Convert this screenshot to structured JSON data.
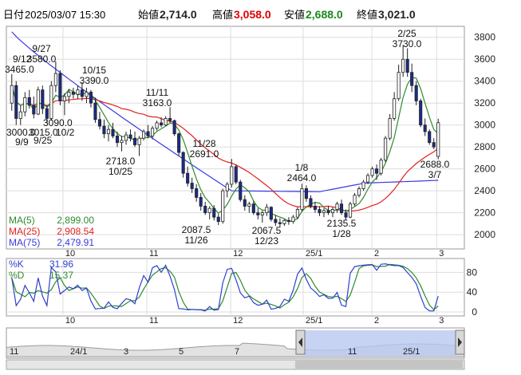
{
  "header": {
    "date_label": "日付",
    "datetime": "2025/03/07 15:30",
    "open_label": "始値",
    "open_value": "2,714.0",
    "high_label": "高値",
    "high_value": "3,058.0",
    "low_label": "安値",
    "low_value": "2,688.0",
    "close_label": "終値",
    "close_value": "3,021.0"
  },
  "colors": {
    "up": "#ffffff",
    "down": "#1a2b8c",
    "ma5": "#2e8b2e",
    "ma25": "#e02020",
    "ma75": "#3a3ae0",
    "k_line": "#2f3fd0",
    "d_line": "#2e8b2e",
    "open_color": "#222222",
    "high_color": "#e00000",
    "low_color": "#1a8a1a",
    "close_color": "#222222",
    "nav_fill": "#b8c8f0"
  },
  "legend": {
    "ma5_label": "MA(5)",
    "ma5_value": "2,899.00",
    "ma25_label": "MA(25)",
    "ma25_value": "2,908.54",
    "ma75_label": "MA(75)",
    "ma75_value": "2,479.91"
  },
  "stoch_legend": {
    "k_label": "%K",
    "k_value": "31.96",
    "d_label": "%D",
    "d_value": "15.37"
  },
  "chart_data": {
    "type": "candlestick",
    "price_axis": {
      "ticks": [
        2000,
        2200,
        2400,
        2600,
        2800,
        3000,
        3200,
        3400,
        3600,
        3800
      ],
      "range": [
        1870,
        3900
      ]
    },
    "x_ticks": [
      "10",
      "11",
      "12",
      "25/1",
      "2",
      "3"
    ],
    "annotations": [
      {
        "date": "9/12",
        "value": "3465.0"
      },
      {
        "date": "9/27",
        "value": "3580.0"
      },
      {
        "date": "10/15",
        "value": "3390.0"
      },
      {
        "date": "11/11",
        "value": "3163.0"
      },
      {
        "date": "11/28",
        "value": "2691.0"
      },
      {
        "date": "1/8",
        "value": "2464.0"
      },
      {
        "date": "2/25",
        "value": "3730.0"
      },
      {
        "date": "10/25",
        "value": "2718.0"
      },
      {
        "date": "11/26",
        "value": "2087.5"
      },
      {
        "date": "12/23",
        "value": "2067.5"
      },
      {
        "date": "1/28",
        "value": "2135.5"
      },
      {
        "date": "3/7",
        "value": "2688.0"
      }
    ],
    "low_labels_left": [
      "3000.0",
      "3015.0",
      "3090.0"
    ],
    "low_dates_left": [
      "9/9",
      "9/25",
      "10/2"
    ],
    "candles": [
      [
        3200,
        3465,
        3130,
        3360
      ],
      [
        3360,
        3400,
        3000,
        3060
      ],
      [
        3060,
        3180,
        3000,
        3120
      ],
      [
        3120,
        3300,
        3080,
        3250
      ],
      [
        3250,
        3320,
        3150,
        3180
      ],
      [
        3180,
        3260,
        3060,
        3100
      ],
      [
        3100,
        3350,
        3090,
        3320
      ],
      [
        3320,
        3360,
        3100,
        3150
      ],
      [
        3150,
        3180,
        3015,
        3060
      ],
      [
        3060,
        3400,
        3040,
        3360
      ],
      [
        3360,
        3580,
        3300,
        3470
      ],
      [
        3470,
        3500,
        3180,
        3220
      ],
      [
        3220,
        3290,
        3090,
        3260
      ],
      [
        3260,
        3330,
        3200,
        3300
      ],
      [
        3300,
        3340,
        3240,
        3280
      ],
      [
        3280,
        3360,
        3240,
        3320
      ],
      [
        3320,
        3390,
        3220,
        3260
      ],
      [
        3260,
        3340,
        3200,
        3300
      ],
      [
        3300,
        3320,
        3160,
        3200
      ],
      [
        3200,
        3250,
        3020,
        3050
      ],
      [
        3050,
        3120,
        2960,
        2990
      ],
      [
        2990,
        3050,
        2880,
        2920
      ],
      [
        2920,
        3000,
        2850,
        2960
      ],
      [
        2960,
        3020,
        2880,
        2900
      ],
      [
        2900,
        2940,
        2800,
        2840
      ],
      [
        2840,
        2900,
        2760,
        2860
      ],
      [
        2860,
        2940,
        2820,
        2910
      ],
      [
        2910,
        2960,
        2850,
        2880
      ],
      [
        2880,
        2940,
        2800,
        2820
      ],
      [
        2820,
        2900,
        2718,
        2880
      ],
      [
        2880,
        2960,
        2860,
        2940
      ],
      [
        2940,
        3000,
        2880,
        2900
      ],
      [
        2900,
        2990,
        2870,
        2970
      ],
      [
        2970,
        3040,
        2950,
        3020
      ],
      [
        3020,
        3070,
        2980,
        3000
      ],
      [
        3000,
        3080,
        2990,
        3060
      ],
      [
        3060,
        3163,
        3020,
        3040
      ],
      [
        3040,
        3050,
        2900,
        2920
      ],
      [
        2920,
        2930,
        2720,
        2750
      ],
      [
        2750,
        2760,
        2520,
        2560
      ],
      [
        2560,
        2620,
        2440,
        2470
      ],
      [
        2470,
        2520,
        2380,
        2420
      ],
      [
        2420,
        2460,
        2300,
        2340
      ],
      [
        2340,
        2380,
        2220,
        2260
      ],
      [
        2260,
        2300,
        2180,
        2200
      ],
      [
        2200,
        2260,
        2140,
        2240
      ],
      [
        2240,
        2270,
        2130,
        2160
      ],
      [
        2160,
        2190,
        2087.5,
        2120
      ],
      [
        2120,
        2420,
        2100,
        2400
      ],
      [
        2400,
        2480,
        2340,
        2460
      ],
      [
        2460,
        2691,
        2430,
        2620
      ],
      [
        2620,
        2640,
        2460,
        2480
      ],
      [
        2480,
        2500,
        2300,
        2320
      ],
      [
        2320,
        2360,
        2220,
        2260
      ],
      [
        2260,
        2300,
        2200,
        2280
      ],
      [
        2280,
        2310,
        2180,
        2200
      ],
      [
        2200,
        2240,
        2140,
        2180
      ],
      [
        2180,
        2220,
        2110,
        2200
      ],
      [
        2200,
        2280,
        2170,
        2250
      ],
      [
        2250,
        2260,
        2120,
        2140
      ],
      [
        2140,
        2180,
        2080,
        2110
      ],
      [
        2110,
        2150,
        2067.5,
        2100
      ],
      [
        2100,
        2140,
        2080,
        2130
      ],
      [
        2130,
        2160,
        2090,
        2120
      ],
      [
        2120,
        2180,
        2100,
        2160
      ],
      [
        2160,
        2250,
        2140,
        2230
      ],
      [
        2230,
        2464,
        2210,
        2420
      ],
      [
        2420,
        2450,
        2300,
        2330
      ],
      [
        2330,
        2360,
        2240,
        2260
      ],
      [
        2260,
        2300,
        2200,
        2230
      ],
      [
        2230,
        2260,
        2170,
        2200
      ],
      [
        2200,
        2240,
        2160,
        2220
      ],
      [
        2220,
        2260,
        2180,
        2200
      ],
      [
        2200,
        2250,
        2160,
        2230
      ],
      [
        2230,
        2300,
        2200,
        2280
      ],
      [
        2280,
        2320,
        2180,
        2200
      ],
      [
        2200,
        2230,
        2135.5,
        2160
      ],
      [
        2160,
        2300,
        2150,
        2280
      ],
      [
        2280,
        2380,
        2260,
        2360
      ],
      [
        2360,
        2440,
        2340,
        2420
      ],
      [
        2420,
        2500,
        2400,
        2480
      ],
      [
        2480,
        2560,
        2460,
        2540
      ],
      [
        2540,
        2620,
        2520,
        2600
      ],
      [
        2600,
        2640,
        2500,
        2560
      ],
      [
        2560,
        2700,
        2540,
        2680
      ],
      [
        2680,
        2900,
        2660,
        2880
      ],
      [
        2880,
        3100,
        2860,
        3060
      ],
      [
        3060,
        3300,
        3040,
        3240
      ],
      [
        3240,
        3550,
        3220,
        3480
      ],
      [
        3480,
        3730,
        3440,
        3600
      ],
      [
        3600,
        3700,
        3440,
        3480
      ],
      [
        3480,
        3560,
        3300,
        3360
      ],
      [
        3360,
        3400,
        3180,
        3220
      ],
      [
        3220,
        3240,
        2980,
        3000
      ],
      [
        3000,
        3060,
        2900,
        2940
      ],
      [
        2940,
        2960,
        2820,
        2840
      ],
      [
        2840,
        2880,
        2780,
        2800
      ],
      [
        2714,
        3058,
        2688,
        3021
      ]
    ],
    "ma5": [],
    "ma25": [],
    "ma75": [],
    "stochastic": {
      "axis_ticks": [
        0,
        40,
        80
      ]
    },
    "nav_labels": [
      "11",
      "24/1",
      "3",
      "5",
      "7",
      "11",
      "25/1"
    ]
  }
}
